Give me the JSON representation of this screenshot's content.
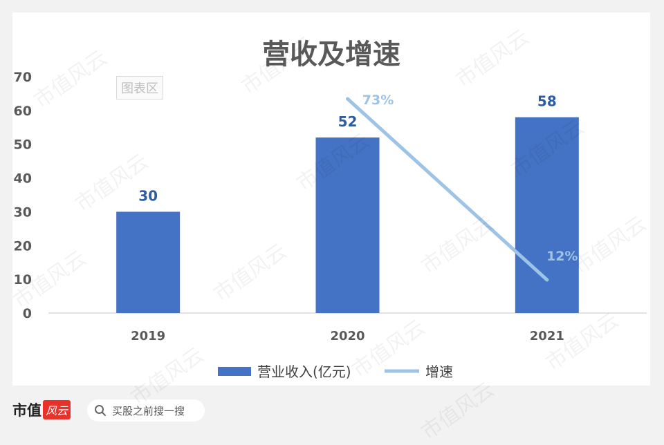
{
  "chart_data": {
    "type": "bar",
    "title": "营收及增速",
    "categories": [
      "2019",
      "2020",
      "2021"
    ],
    "series": [
      {
        "name": "营业收入(亿元)",
        "kind": "bar",
        "axis": "left",
        "values": [
          30,
          52,
          58
        ],
        "labels": [
          "30",
          "52",
          "58"
        ],
        "color": "#4472c4"
      },
      {
        "name": "增速",
        "kind": "line",
        "axis": "right-hidden",
        "values": [
          null,
          73,
          12
        ],
        "labels": [
          "",
          "73%",
          "12%"
        ],
        "color": "#9dc3e6"
      }
    ],
    "yticks": [
      "0",
      "10",
      "20",
      "30",
      "40",
      "50",
      "60",
      "70"
    ],
    "ylim": [
      0,
      70
    ],
    "grid": false,
    "legend": "bottom"
  },
  "chart_area_tag": "图表区",
  "watermark": "市值风云",
  "footer": {
    "brand": "市值",
    "brand_script": "风云",
    "search_placeholder": "买股之前搜一搜"
  }
}
